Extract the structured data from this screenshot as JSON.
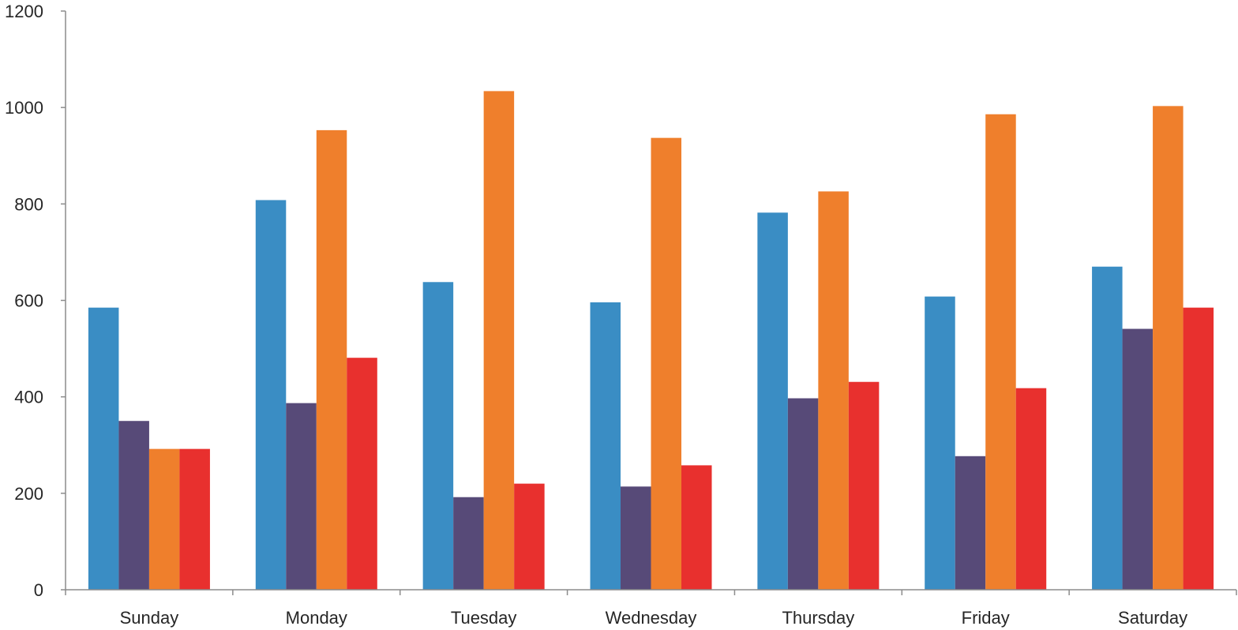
{
  "chart_data": {
    "type": "bar",
    "categories": [
      "Sunday",
      "Monday",
      "Tuesday",
      "Wednesday",
      "Thursday",
      "Friday",
      "Saturday"
    ],
    "series": [
      {
        "values": [
          585,
          808,
          638,
          596,
          782,
          608,
          670
        ],
        "color": "#3a8dc4"
      },
      {
        "values": [
          350,
          387,
          192,
          214,
          397,
          277,
          541
        ],
        "color": "#574a78"
      },
      {
        "values": [
          292,
          953,
          1034,
          937,
          826,
          986,
          1003
        ],
        "color": "#ef7f2c"
      },
      {
        "values": [
          292,
          481,
          220,
          258,
          431,
          418,
          585
        ],
        "color": "#e8302e"
      }
    ],
    "y_ticks": [
      "0",
      "200",
      "400",
      "600",
      "800",
      "1000",
      "1200"
    ],
    "ylim": [
      0,
      1200
    ],
    "grid": false,
    "legend": false
  }
}
